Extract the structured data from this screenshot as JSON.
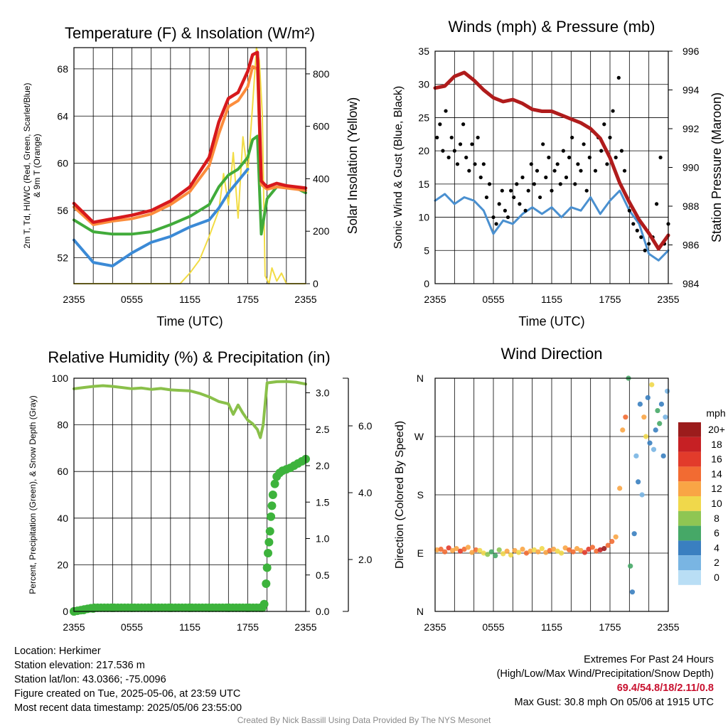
{
  "chart_data": [
    {
      "type": "line",
      "title": "Temperature (F) & Insolation (W/m²)",
      "xlabel": "Time (UTC)",
      "ylabel_left": "2m T, Td, HI/WC (Red, Green, Scarlet/Blue)",
      "ylabel_left_line2": "& 9m T (Orange)",
      "ylabel_right": "Solar Insolation (Yellow)",
      "x_ticks": [
        "2355",
        "0555",
        "1155",
        "1755",
        "2355"
      ],
      "y_ticks": [
        52,
        56,
        60,
        64,
        68
      ],
      "y2_ticks": [
        0,
        200,
        400,
        600,
        800
      ],
      "ylim": [
        49.8,
        69.8
      ],
      "y2lim": [
        0,
        900
      ],
      "x_hours": [
        0,
        2,
        4,
        6,
        8,
        10,
        12,
        14,
        15,
        16,
        17,
        18,
        18.5,
        19,
        19.4,
        20,
        21,
        22,
        23,
        24
      ],
      "series": [
        {
          "name": "2m T",
          "color": "#d7191c",
          "width": 4.5,
          "axis": "left",
          "values": [
            56.6,
            55.0,
            55.3,
            55.6,
            56.0,
            56.8,
            58.0,
            60.5,
            63.5,
            65.5,
            66.0,
            67.8,
            69.2,
            69.4,
            58.5,
            58.0,
            58.3,
            58.1,
            58.0,
            57.9
          ]
        },
        {
          "name": "9m T",
          "color": "#fc8d3c",
          "width": 4,
          "axis": "left",
          "values": [
            56.3,
            54.8,
            55.1,
            55.3,
            55.7,
            56.5,
            57.6,
            59.8,
            62.5,
            64.8,
            65.3,
            66.5,
            68.2,
            68.0,
            58.2,
            57.8,
            58.0,
            57.9,
            57.8,
            57.7
          ]
        },
        {
          "name": "Td",
          "color": "#41ab3a",
          "width": 4,
          "axis": "left",
          "values": [
            55.2,
            54.2,
            54.0,
            54.0,
            54.2,
            54.8,
            55.5,
            56.5,
            58.0,
            59.0,
            59.5,
            60.5,
            62.0,
            62.3,
            54.0,
            57.0,
            58.0,
            58.0,
            57.9,
            57.5
          ]
        },
        {
          "name": "HI/WC",
          "color": "#3b8ad6",
          "width": 4,
          "axis": "left",
          "values": [
            53.5,
            51.6,
            51.3,
            52.4,
            53.3,
            53.8,
            54.6,
            55.2,
            56.2,
            57.5,
            58.5,
            59.5,
            null,
            null,
            null,
            null,
            null,
            null,
            null,
            null
          ]
        }
      ],
      "insolation": {
        "name": "Solar Insolation",
        "color": "#f2dc44",
        "x_hours": [
          0,
          11,
          12,
          13,
          14,
          15,
          15.5,
          16,
          16.5,
          17,
          17.5,
          18,
          18.5,
          18.9,
          19.2,
          19.5,
          19.8,
          20.2,
          20.5,
          21,
          21.5,
          22,
          23,
          24
        ],
        "values": [
          0,
          0,
          40,
          90,
          180,
          280,
          420,
          300,
          500,
          250,
          560,
          420,
          680,
          900,
          850,
          650,
          30,
          0,
          60,
          10,
          40,
          0,
          0,
          0
        ]
      }
    },
    {
      "type": "line",
      "title": "Winds (mph) & Pressure (mb)",
      "xlabel": "Time (UTC)",
      "ylabel_left": "Sonic Wind & Gust (Blue, Black)",
      "ylabel_right": "Station Pressure (Maroon)",
      "x_ticks": [
        "2355",
        "0555",
        "1155",
        "1755",
        "2355"
      ],
      "y_ticks": [
        0,
        5,
        10,
        15,
        20,
        25,
        30,
        35
      ],
      "y2_ticks": [
        984,
        986,
        988,
        990,
        992,
        994,
        996
      ],
      "ylim": [
        0,
        35
      ],
      "y2lim": [
        984,
        996
      ],
      "x_hours": [
        0,
        1,
        2,
        3,
        4,
        5,
        6,
        7,
        8,
        9,
        10,
        11,
        12,
        13,
        14,
        15,
        16,
        17,
        18,
        19,
        20,
        21,
        22,
        23,
        24
      ],
      "series": [
        {
          "name": "Sonic Wind",
          "color": "#4a90d0",
          "width": 3,
          "axis": "left",
          "values": [
            12.5,
            13.5,
            12.0,
            13.0,
            12.5,
            11.0,
            7.5,
            9.5,
            9.0,
            10.5,
            11.5,
            10.5,
            11.5,
            10.0,
            11.5,
            11.0,
            13.0,
            10.5,
            12.5,
            14.0,
            11.0,
            9.0,
            4.5,
            3.5,
            5.0
          ]
        },
        {
          "name": "Station Pressure",
          "color": "#b01c1c",
          "width": 5,
          "axis": "right",
          "values": [
            994.1,
            994.2,
            994.7,
            994.9,
            994.5,
            994.0,
            993.6,
            993.4,
            993.5,
            993.3,
            993.0,
            992.9,
            992.9,
            992.7,
            992.5,
            992.3,
            992.0,
            991.5,
            990.5,
            989.2,
            988.2,
            987.3,
            986.6,
            985.8,
            986.5
          ]
        }
      ],
      "gust_points": {
        "name": "Gust",
        "color": "#000000",
        "x_hours": [
          0.2,
          0.5,
          0.8,
          1.1,
          1.4,
          1.7,
          2.0,
          2.3,
          2.6,
          2.9,
          3.2,
          3.5,
          3.8,
          4.1,
          4.4,
          4.7,
          5.0,
          5.3,
          5.6,
          6.0,
          6.3,
          6.6,
          6.9,
          7.2,
          7.5,
          7.8,
          8.1,
          8.4,
          8.7,
          9.0,
          9.3,
          9.6,
          9.9,
          10.2,
          10.5,
          10.8,
          11.1,
          11.4,
          11.7,
          12.0,
          12.3,
          12.6,
          12.9,
          13.2,
          13.5,
          13.8,
          14.1,
          14.4,
          14.7,
          15.0,
          15.3,
          15.6,
          15.9,
          16.2,
          16.5,
          16.8,
          17.1,
          17.4,
          17.7,
          18.0,
          18.3,
          18.6,
          18.9,
          19.2,
          19.5,
          20.0,
          20.4,
          20.8,
          21.2,
          21.6,
          22.0,
          22.4,
          22.8,
          23.2,
          23.6,
          24.0
        ],
        "values": [
          22,
          24,
          20,
          26,
          19,
          22,
          20,
          18,
          21,
          24,
          19,
          17,
          21,
          18,
          22,
          16,
          18,
          13,
          15,
          10,
          9,
          12,
          14,
          11,
          10,
          14,
          13,
          15,
          12,
          16,
          11,
          14,
          18,
          15,
          17,
          13,
          21,
          16,
          19,
          14,
          17,
          18,
          15,
          20,
          16,
          19,
          22,
          15,
          18,
          17,
          21,
          14,
          19,
          23,
          17,
          22,
          20,
          24,
          18,
          22,
          26,
          19,
          31,
          20,
          17,
          11,
          9,
          8,
          7,
          5,
          6,
          7,
          12,
          19,
          6,
          9
        ]
      }
    },
    {
      "type": "line",
      "title": "Relative Humidity (%) & Precipitation (in)",
      "ylabel_left": "Percent, Precipitation (Green), & Snow Depth (Gray)",
      "x_ticks": [
        "2355",
        "0555",
        "1155",
        "1755",
        "2355"
      ],
      "y_ticks": [
        0,
        20,
        40,
        60,
        80,
        100
      ],
      "y2_ticks": [
        "0.0",
        "0.5",
        "1.0",
        "1.5",
        "2.0",
        "2.5",
        "3.0"
      ],
      "y3_ticks": [
        "2.0",
        "4.0",
        "6.0"
      ],
      "ylim": [
        0,
        100
      ],
      "y2lim": [
        0,
        3.2
      ],
      "x_hours": [
        0,
        1,
        2,
        3,
        4,
        5,
        6,
        7,
        8,
        9,
        10,
        11,
        12,
        13,
        14,
        15,
        16,
        16.5,
        17,
        17.5,
        18,
        18.5,
        19,
        19.3,
        19.6,
        20,
        21,
        22,
        23,
        24
      ],
      "series": [
        {
          "name": "Relative Humidity",
          "color": "#8ac04a",
          "width": 4,
          "axis": "left",
          "values": [
            95.5,
            96.0,
            96.5,
            96.8,
            96.5,
            96.0,
            95.5,
            95.8,
            95.2,
            95.6,
            95.0,
            94.8,
            94.6,
            93.5,
            92.0,
            90.0,
            89.0,
            84.5,
            88.5,
            85.0,
            82.0,
            80.5,
            78.0,
            74.5,
            80.0,
            98.0,
            98.5,
            98.6,
            98.3,
            97.5
          ]
        }
      ],
      "precip_points": {
        "name": "Precipitation",
        "color": "#3db33c",
        "x_hours": [
          0,
          1,
          2,
          4,
          6,
          8,
          10,
          12,
          14,
          16,
          18,
          19.5,
          19.7,
          19.9,
          20.0,
          20.1,
          20.2,
          20.3,
          20.4,
          20.5,
          20.6,
          20.8,
          21.0,
          21.3,
          21.6,
          22.0,
          22.4,
          22.8,
          23.2,
          23.6,
          24.0
        ],
        "values": [
          0.0,
          0.02,
          0.04,
          0.05,
          0.05,
          0.05,
          0.05,
          0.05,
          0.05,
          0.05,
          0.05,
          0.05,
          0.1,
          0.38,
          0.6,
          0.8,
          0.95,
          1.1,
          1.3,
          1.45,
          1.6,
          1.75,
          1.85,
          1.9,
          1.93,
          1.95,
          1.97,
          2.0,
          2.03,
          2.06,
          2.09
        ]
      }
    },
    {
      "type": "scatter",
      "title": "Wind Direction",
      "ylabel_left": "Direction (Colored By Speed)",
      "x_ticks": [
        "2355",
        "0555",
        "1155",
        "1755",
        "2355"
      ],
      "y_ticks": [
        "N",
        "E",
        "S",
        "W",
        "N"
      ],
      "colorbar_title": "mph",
      "colorbar_labels": [
        "20+",
        "18",
        "16",
        "14",
        "12",
        "10",
        "8",
        "6",
        "4",
        "2",
        "0"
      ],
      "colorbar_colors": [
        "#9b1c1c",
        "#c62024",
        "#e23b2b",
        "#f26b32",
        "#f9a545",
        "#f0d84b",
        "#8fc653",
        "#46a867",
        "#3a7fc0",
        "#79b5e3",
        "#b9def5"
      ],
      "x_hours": [
        0.2,
        0.6,
        1.0,
        1.4,
        1.8,
        2.2,
        2.6,
        3.0,
        3.4,
        3.8,
        4.2,
        4.6,
        5.0,
        5.4,
        5.8,
        6.2,
        6.6,
        7.0,
        7.4,
        7.8,
        8.2,
        8.6,
        9.0,
        9.4,
        9.8,
        10.2,
        10.6,
        11.0,
        11.4,
        11.8,
        12.2,
        12.6,
        13.0,
        13.4,
        13.8,
        14.2,
        14.6,
        15.0,
        15.4,
        15.8,
        16.2,
        16.6,
        17.0,
        17.4,
        17.8,
        18.2,
        18.6,
        19.0,
        19.3,
        19.6,
        19.9,
        20.1,
        20.3,
        20.5,
        20.7,
        20.9,
        21.1,
        21.3,
        21.5,
        21.7,
        21.9,
        22.1,
        22.3,
        22.5,
        22.7,
        22.9,
        23.1,
        23.3,
        23.5,
        23.7,
        23.9
      ],
      "values": [
        95,
        96,
        92,
        98,
        94,
        97,
        93,
        96,
        99,
        91,
        95,
        94,
        90,
        88,
        92,
        86,
        95,
        89,
        93,
        87,
        94,
        91,
        96,
        90,
        93,
        95,
        92,
        97,
        91,
        94,
        96,
        93,
        90,
        98,
        95,
        92,
        97,
        94,
        91,
        96,
        99,
        93,
        95,
        97,
        102,
        108,
        115,
        190,
        280,
        300,
        360,
        70,
        30,
        120,
        240,
        200,
        320,
        180,
        300,
        270,
        330,
        260,
        350,
        250,
        280,
        310,
        290,
        320,
        240,
        300,
        340
      ],
      "speeds": [
        12,
        14,
        13,
        16,
        11,
        12,
        15,
        13,
        12,
        11,
        14,
        10,
        9,
        8,
        6,
        5,
        7,
        9,
        11,
        10,
        12,
        9,
        11,
        13,
        12,
        10,
        11,
        9,
        12,
        13,
        11,
        10,
        9,
        12,
        14,
        13,
        11,
        12,
        15,
        16,
        14,
        13,
        17,
        19,
        14,
        13,
        12,
        11,
        12,
        13,
        6,
        5,
        4,
        3,
        2,
        4,
        3,
        2,
        11,
        10,
        3,
        4,
        9,
        2,
        3,
        5,
        6,
        4,
        3,
        2,
        1
      ]
    }
  ],
  "info": {
    "location": "Location: Herkimer",
    "elevation": "Station elevation: 217.536 m",
    "latlon": "Station lat/lon: 43.0366; -75.0096",
    "created": "Figure created on Tue, 2025-05-06, at 23:59 UTC",
    "recent": "Most recent data timestamp: 2025/05/06 23:55:00"
  },
  "extremes": {
    "title": "Extremes For Past 24 Hours",
    "subtitle": "(High/Low/Max Wind/Precipitation/Snow Depth)",
    "values": "69.4/54.8/18/2.11/0.8",
    "gust": "Max Gust: 30.8 mph On 05/06 at 1915 UTC"
  },
  "credit": "Created By Nick Bassill Using Data Provided By The NYS Mesonet"
}
